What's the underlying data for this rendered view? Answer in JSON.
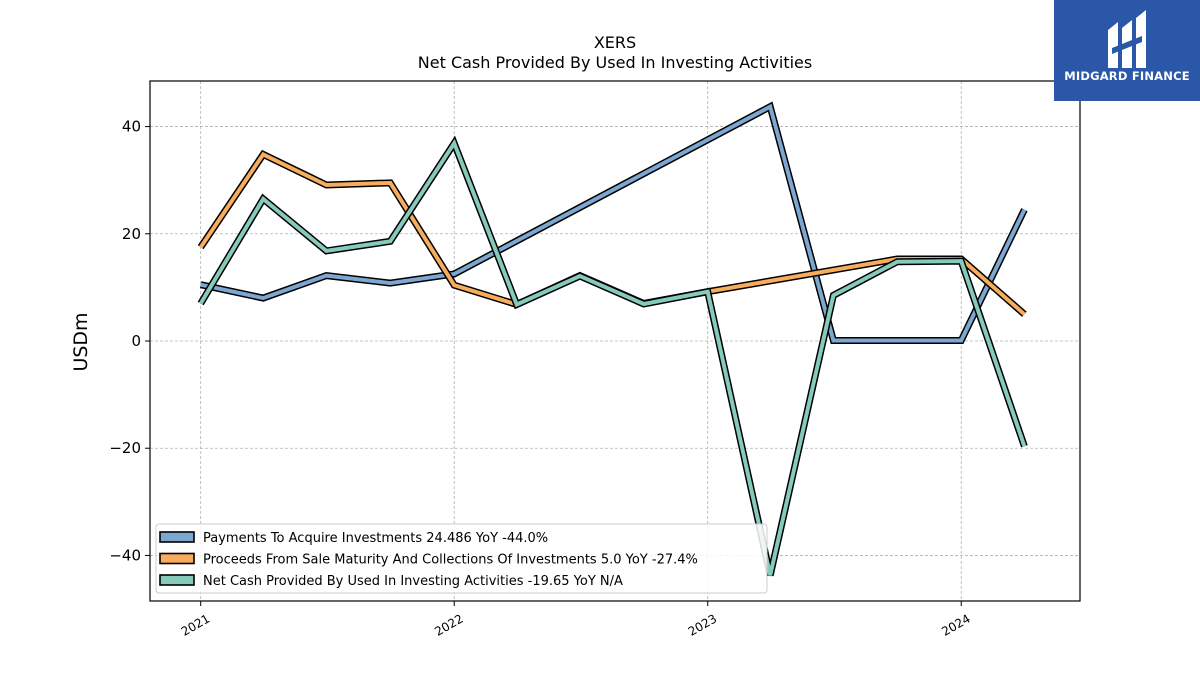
{
  "brand": {
    "name": "MIDGARD FINANCE",
    "icon": "midgard-finance-logo-icon",
    "color": "#2a57a8"
  },
  "chart_data": {
    "type": "line",
    "title": "XERS",
    "subtitle": "Net Cash Provided By Used In Investing Activities",
    "xlabel": "",
    "ylabel": "USDm",
    "xlim": [
      "2020-10-20",
      "2024-06-20"
    ],
    "ylim": [
      -48.5,
      48.5
    ],
    "x_ticks": [
      "2021-01-01",
      "2022-01-01",
      "2023-01-01",
      "2024-01-01"
    ],
    "x_tick_labels": [
      "2021",
      "2022",
      "2023",
      "2024"
    ],
    "y_ticks": [
      -40,
      -20,
      0,
      20,
      40
    ],
    "y_tick_labels": [
      "−40",
      "−20",
      "0",
      "20",
      "40"
    ],
    "grid": true,
    "legend_position": "bottom-left",
    "x": [
      "2021-01-01",
      "2021-04-01",
      "2021-07-01",
      "2021-10-01",
      "2022-01-01",
      "2022-04-01",
      "2022-07-01",
      "2022-10-01",
      "2023-01-01",
      "2023-04-01",
      "2023-07-01",
      "2023-10-01",
      "2024-01-01",
      "2024-04-01"
    ],
    "series": [
      {
        "name": "Payments To Acquire Investments",
        "legend": "Payments To Acquire Investments  24.486 YoY -44.0%",
        "color": "#7ba7d1",
        "values": [
          10.5,
          8.0,
          12.2,
          10.8,
          12.5,
          null,
          null,
          null,
          null,
          43.7,
          0.1,
          null,
          0.1,
          24.49
        ]
      },
      {
        "name": "Proceeds From Sale Maturity And Collections Of Investments",
        "legend": "Proceeds From Sale Maturity And Collections Of Investments  5.0 YoY -27.4%",
        "color": "#f7ac5e",
        "values": [
          17.5,
          34.8,
          29.1,
          29.5,
          10.4,
          6.8,
          12.2,
          7.0,
          9.2,
          null,
          null,
          15.3,
          15.3,
          5.0
        ]
      },
      {
        "name": "Net Cash Provided By Used In Investing Activities",
        "legend": "Net Cash Provided By Used In Investing Activities  -19.65 YoY N/A",
        "color": "#86cabb",
        "values": [
          7.0,
          26.5,
          16.8,
          18.6,
          36.9,
          6.8,
          12.1,
          6.9,
          9.2,
          -43.7,
          8.5,
          14.8,
          14.9,
          -19.65
        ]
      }
    ]
  }
}
